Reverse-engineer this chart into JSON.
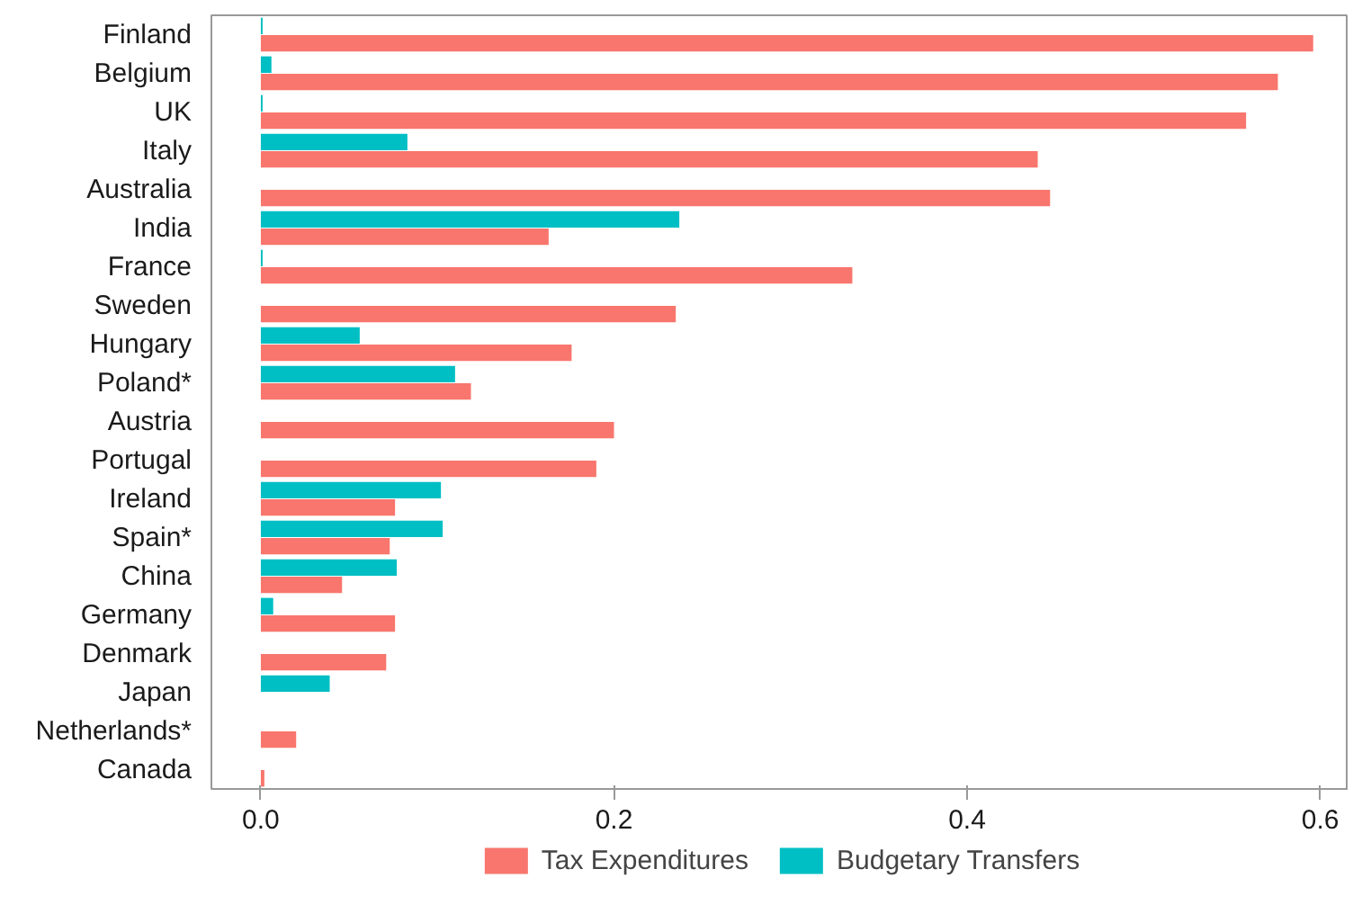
{
  "chart_data": {
    "type": "bar",
    "orientation": "horizontal",
    "categories": [
      "Finland",
      "Belgium",
      "UK",
      "Italy",
      "Australia",
      "India",
      "France",
      "Sweden",
      "Hungary",
      "Poland*",
      "Austria",
      "Portugal",
      "Ireland",
      "Spain*",
      "China",
      "Germany",
      "Denmark",
      "Japan",
      "Netherlands*",
      "Canada"
    ],
    "series": [
      {
        "name": "Tax Expenditures",
        "color": "#f8766d",
        "values": [
          0.596,
          0.576,
          0.558,
          0.44,
          0.447,
          0.163,
          0.335,
          0.235,
          0.176,
          0.119,
          0.2,
          0.19,
          0.076,
          0.073,
          0.046,
          0.076,
          0.071,
          null,
          0.02,
          0.002
        ]
      },
      {
        "name": "Budgetary Transfers",
        "color": "#00bfc4",
        "values": [
          0.001,
          0.006,
          0.001,
          0.083,
          null,
          0.237,
          0.001,
          null,
          0.056,
          0.11,
          null,
          null,
          0.102,
          0.103,
          0.077,
          0.007,
          null,
          0.039,
          null,
          null
        ]
      }
    ],
    "xlim": [
      -0.028,
      0.616
    ],
    "xticks": [
      {
        "value": 0,
        "label": "0.0"
      },
      0.2,
      0.4,
      0.6
    ],
    "grid": false,
    "legend": "bottom"
  }
}
